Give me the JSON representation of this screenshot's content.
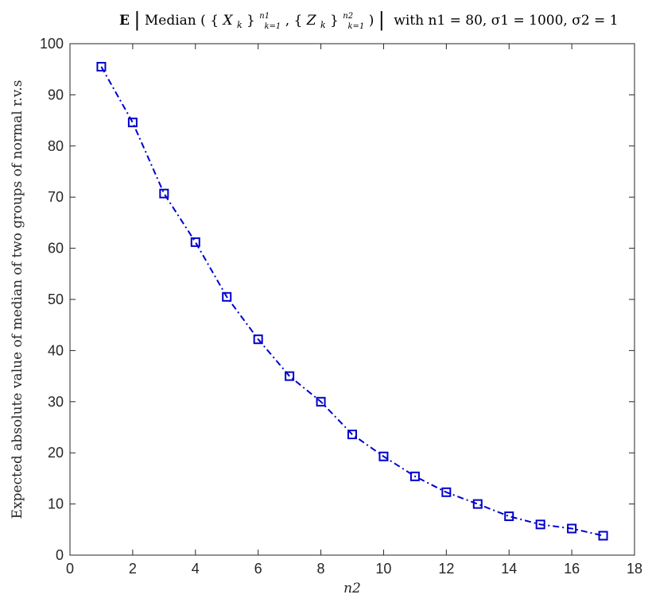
{
  "chart_data": {
    "type": "line",
    "title": {
      "bold_e": "E",
      "median": "Median",
      "open_paren": "(",
      "x_var": "X",
      "z_var": "Z",
      "k_sub": "k",
      "range_sub": "k=1",
      "n1_sup": "n1",
      "n2_sup": "n2",
      "close_paren": ")",
      "tail": "with n1 = 80, σ1 = 1000, σ2 = 1"
    },
    "xlabel": "n2",
    "ylabel": "Expected absolute value of median of two groups of normal r.v.s",
    "xlim": [
      0,
      18
    ],
    "ylim": [
      0,
      100
    ],
    "xticks": [
      "0",
      "2",
      "4",
      "6",
      "8",
      "10",
      "12",
      "14",
      "16",
      "18"
    ],
    "yticks": [
      "0",
      "10",
      "20",
      "30",
      "40",
      "50",
      "60",
      "70",
      "80",
      "90",
      "100"
    ],
    "grid": false,
    "series": [
      {
        "color": "#0000cc",
        "line_style": "dash-dot",
        "marker": "square",
        "x": [
          1,
          2,
          3,
          4,
          5,
          6,
          7,
          8,
          9,
          10,
          11,
          12,
          13,
          14,
          15,
          16,
          17
        ],
        "y": [
          95.5,
          84.6,
          70.7,
          61.2,
          50.5,
          42.2,
          35.0,
          30.0,
          23.6,
          19.3,
          15.4,
          12.3,
          10.0,
          7.6,
          6.0,
          5.2,
          3.8
        ]
      }
    ]
  }
}
